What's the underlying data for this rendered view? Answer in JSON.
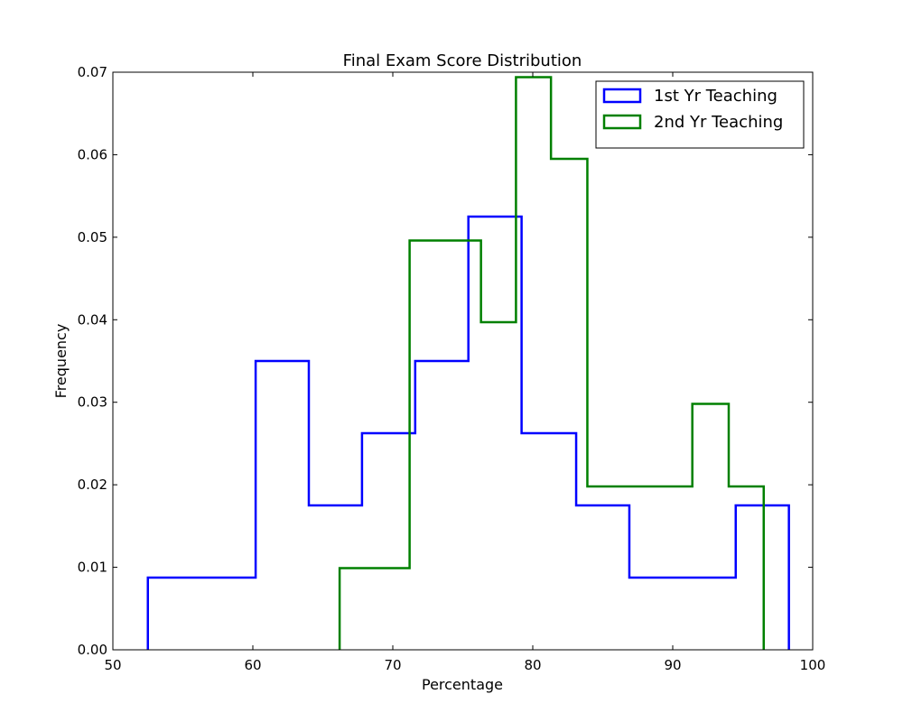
{
  "chart_data": {
    "type": "histogram-step",
    "title": "Final Exam Score Distribution",
    "xlabel": "Percentage",
    "ylabel": "Frequency",
    "xlim": [
      50,
      100
    ],
    "ylim": [
      0,
      0.07
    ],
    "x_ticks": [
      50,
      60,
      70,
      80,
      90,
      100
    ],
    "y_ticks": [
      0.0,
      0.01,
      0.02,
      0.03,
      0.04,
      0.05,
      0.06,
      0.07
    ],
    "y_tick_labels": [
      "0.00",
      "0.01",
      "0.02",
      "0.03",
      "0.04",
      "0.05",
      "0.06",
      "0.07"
    ],
    "grid": false,
    "legend_position": "top-right",
    "series": [
      {
        "name": "1st Yr Teaching",
        "color": "#0000ff",
        "bin_edges": [
          52.5,
          56.3,
          60.2,
          64.0,
          67.8,
          71.6,
          75.4,
          79.2,
          83.1,
          86.9,
          90.7,
          94.5,
          98.3
        ],
        "values": [
          0.00875,
          0.00875,
          0.035,
          0.0175,
          0.02625,
          0.035,
          0.0525,
          0.02625,
          0.0175,
          0.00875,
          0.00875,
          0.0175
        ]
      },
      {
        "name": "2nd Yr Teaching",
        "color": "#008000",
        "bin_edges": [
          66.2,
          68.7,
          71.2,
          73.8,
          76.3,
          78.8,
          81.3,
          83.9,
          86.4,
          88.9,
          91.4,
          94.0,
          96.5
        ],
        "values": [
          0.0099,
          0.0099,
          0.0496,
          0.0496,
          0.0397,
          0.0694,
          0.0595,
          0.0198,
          0.0198,
          0.0198,
          0.0298,
          0.0198
        ]
      }
    ]
  }
}
